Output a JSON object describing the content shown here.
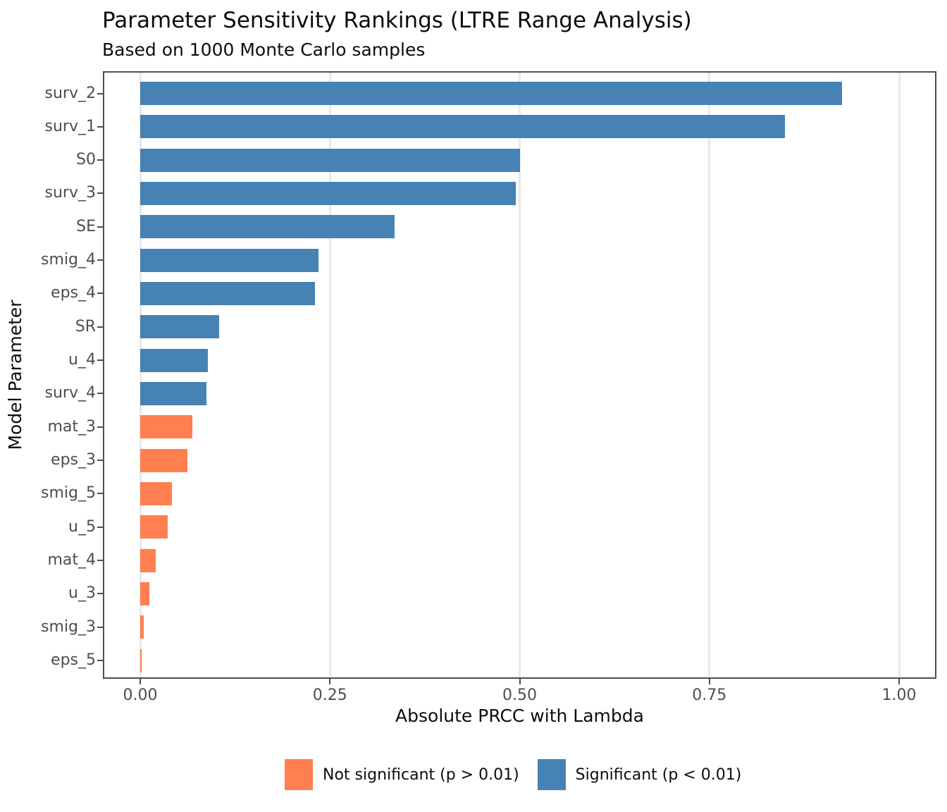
{
  "header": {
    "title": "Parameter Sensitivity Rankings (LTRE Range Analysis)",
    "subtitle": "Based on 1000 Monte Carlo samples"
  },
  "chart_data": {
    "type": "bar",
    "orientation": "horizontal",
    "title": "Parameter Sensitivity Rankings (LTRE Range Analysis)",
    "subtitle": "Based on 1000 Monte Carlo samples",
    "xlabel": "Absolute PRCC with Lambda",
    "ylabel": "Model Parameter",
    "xlim": [
      0.0,
      1.0
    ],
    "x_ticks": [
      0.0,
      0.25,
      0.5,
      0.75,
      1.0
    ],
    "x_tick_labels": [
      "0.00",
      "0.25",
      "0.50",
      "0.75",
      "1.00"
    ],
    "grid": "vertical major gridlines only",
    "legend_position": "bottom",
    "categories": [
      "surv_2",
      "surv_1",
      "S0",
      "surv_3",
      "SE",
      "smig_4",
      "eps_4",
      "SR",
      "u_4",
      "surv_4",
      "mat_3",
      "eps_3",
      "smig_5",
      "u_5",
      "mat_4",
      "u_3",
      "smig_3",
      "eps_5"
    ],
    "values": [
      0.925,
      0.85,
      0.5,
      0.495,
      0.335,
      0.235,
      0.23,
      0.104,
      0.089,
      0.087,
      0.069,
      0.062,
      0.042,
      0.036,
      0.02,
      0.012,
      0.005,
      0.002
    ],
    "significant": [
      true,
      true,
      true,
      true,
      true,
      true,
      true,
      true,
      true,
      true,
      false,
      false,
      false,
      false,
      false,
      false,
      false,
      false
    ]
  },
  "colors": {
    "significant": "#4682B4",
    "not_significant": "#FF7F50"
  },
  "legend": {
    "items": [
      {
        "label": "Not significant (p > 0.01)",
        "color": "#FF7F50",
        "key": "not_significant"
      },
      {
        "label": "Significant (p < 0.01)",
        "color": "#4682B4",
        "key": "significant"
      }
    ]
  }
}
